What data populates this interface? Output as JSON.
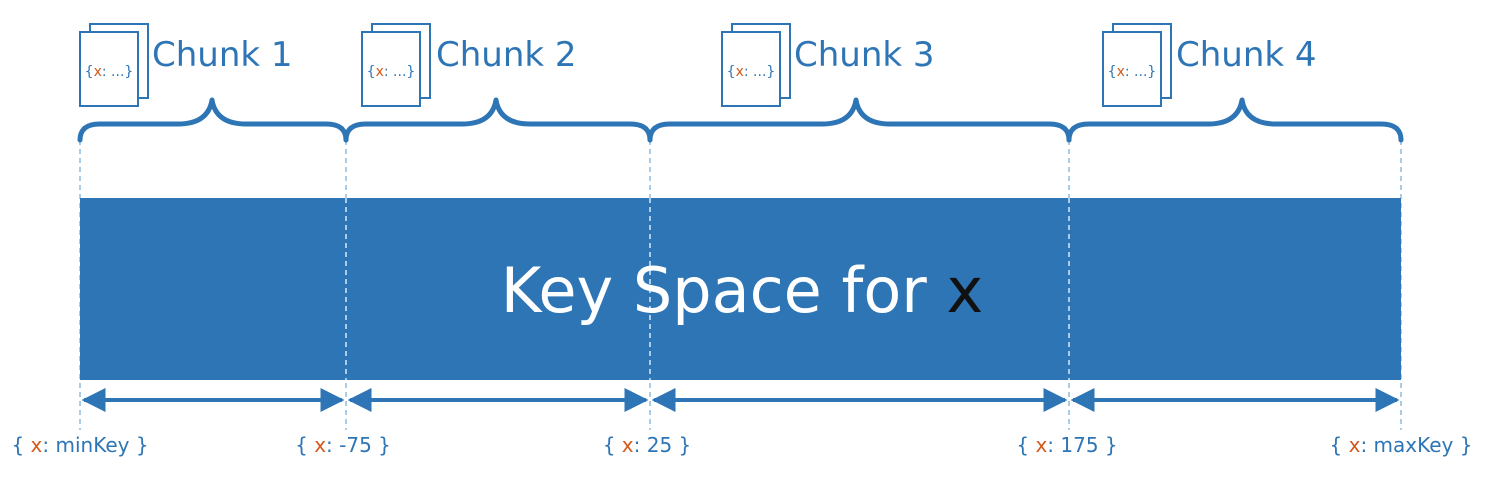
{
  "diagram": {
    "keyspace": {
      "text": "Key Space for ",
      "variable": "x"
    },
    "chunks": [
      {
        "label": "Chunk 1",
        "doc_open": "{",
        "doc_key": "x",
        "doc_rest": ": ...}"
      },
      {
        "label": "Chunk 2",
        "doc_open": "{",
        "doc_key": "x",
        "doc_rest": ": ...}"
      },
      {
        "label": "Chunk 3",
        "doc_open": "{",
        "doc_key": "x",
        "doc_rest": ": ...}"
      },
      {
        "label": "Chunk 4",
        "doc_open": "{",
        "doc_key": "x",
        "doc_rest": ": ...}"
      }
    ],
    "bounds": [
      {
        "open": "{ ",
        "key": "x",
        "value": ": minKey }"
      },
      {
        "open": "{ ",
        "key": "x",
        "value": ": -75 }"
      },
      {
        "open": "{ ",
        "key": "x",
        "value": ": 25 }"
      },
      {
        "open": "{ ",
        "key": "x",
        "value": ": 175 }"
      },
      {
        "open": "{ ",
        "key": "x",
        "value": ": maxKey }"
      }
    ],
    "colors": {
      "primary": "#2e75b6",
      "key": "#d35a1c",
      "guide": "#a9cce8",
      "white": "#ffffff"
    }
  }
}
